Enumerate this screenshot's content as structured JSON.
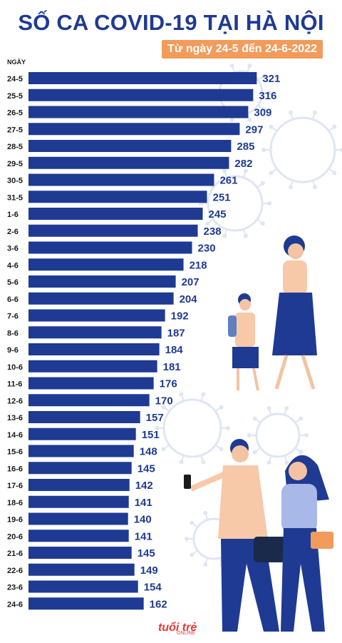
{
  "title": "SỐ CA COVID-19 TẠI HÀ NỘI",
  "subtitle": "Từ ngày 24-5 đến 24-6-2022",
  "logo": "tuổi trẻ",
  "logo_sub": "ONLINE",
  "colors": {
    "bar": "#1f3a93",
    "title": "#1f3a93",
    "badge": "#f29b5b",
    "decor": "#dfe6f3"
  },
  "chart_data": {
    "type": "bar",
    "orientation": "horizontal",
    "ylabel": "NGÀY",
    "categories": [
      "24-5",
      "25-5",
      "26-5",
      "27-5",
      "28-5",
      "29-5",
      "30-5",
      "31-5",
      "1-6",
      "2-6",
      "3-6",
      "4-6",
      "5-6",
      "6-6",
      "7-6",
      "8-6",
      "9-6",
      "10-6",
      "11-6",
      "12-6",
      "13-6",
      "14-6",
      "15-6",
      "16-6",
      "17-6",
      "18-6",
      "19-6",
      "20-6",
      "21-6",
      "22-6",
      "23-6",
      "24-6"
    ],
    "values": [
      321,
      316,
      309,
      297,
      285,
      282,
      261,
      251,
      245,
      238,
      230,
      218,
      207,
      204,
      192,
      187,
      184,
      181,
      176,
      170,
      157,
      151,
      148,
      145,
      142,
      141,
      140,
      141,
      145,
      149,
      154,
      162
    ],
    "grid": false,
    "legend": "none"
  }
}
